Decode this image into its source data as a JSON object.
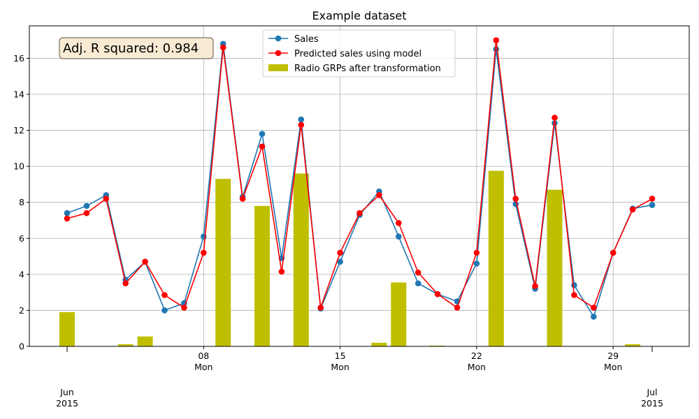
{
  "chart_data": {
    "type": "line",
    "title": "Example dataset",
    "xlabel": "",
    "ylabel": "",
    "ylim": [
      0,
      17.8
    ],
    "yticks": [
      0,
      2,
      4,
      6,
      8,
      10,
      12,
      14,
      16
    ],
    "grid": true,
    "legend_position": "top-center",
    "x": [
      "2015-06-01",
      "2015-06-02",
      "2015-06-03",
      "2015-06-04",
      "2015-06-05",
      "2015-06-06",
      "2015-06-07",
      "2015-06-08",
      "2015-06-09",
      "2015-06-10",
      "2015-06-11",
      "2015-06-12",
      "2015-06-13",
      "2015-06-14",
      "2015-06-15",
      "2015-06-16",
      "2015-06-17",
      "2015-06-18",
      "2015-06-19",
      "2015-06-20",
      "2015-06-21",
      "2015-06-22",
      "2015-06-23",
      "2015-06-24",
      "2015-06-25",
      "2015-06-26",
      "2015-06-27",
      "2015-06-28",
      "2015-06-29",
      "2015-06-30",
      "2015-07-01"
    ],
    "xticks_major": [
      {
        "date": "2015-06-01",
        "line1": "Jun",
        "line2": "2015"
      },
      {
        "date": "2015-07-01",
        "line1": "Jul",
        "line2": "2015"
      }
    ],
    "xticks_minor": [
      {
        "date": "2015-06-08",
        "line1": "08",
        "line2": "Mon"
      },
      {
        "date": "2015-06-15",
        "line1": "15",
        "line2": "Mon"
      },
      {
        "date": "2015-06-22",
        "line1": "22",
        "line2": "Mon"
      },
      {
        "date": "2015-06-29",
        "line1": "29",
        "line2": "Mon"
      }
    ],
    "series": [
      {
        "name": "Sales",
        "kind": "line",
        "color": "#1f77b4",
        "values": [
          7.4,
          7.8,
          8.4,
          3.7,
          4.7,
          2.0,
          2.4,
          6.1,
          16.8,
          8.3,
          11.8,
          4.9,
          12.6,
          2.1,
          4.7,
          7.3,
          8.6,
          6.1,
          3.5,
          2.9,
          2.5,
          4.6,
          16.5,
          7.9,
          3.2,
          12.4,
          3.4,
          1.65,
          5.2,
          7.65,
          7.85
        ]
      },
      {
        "name": "Predicted sales using model",
        "kind": "line",
        "color": "#ff0000",
        "values": [
          7.1,
          7.4,
          8.2,
          3.5,
          4.7,
          2.85,
          2.15,
          5.2,
          16.6,
          8.2,
          11.1,
          4.15,
          12.3,
          2.15,
          5.2,
          7.4,
          8.4,
          6.85,
          4.1,
          2.9,
          2.15,
          5.2,
          17.0,
          8.2,
          3.35,
          12.7,
          2.85,
          2.15,
          5.2,
          7.6,
          8.2
        ]
      },
      {
        "name": "Radio GRPs after transformation",
        "kind": "bar",
        "color": "#bfbf00",
        "values": [
          1.9,
          0,
          0,
          0.12,
          0.55,
          0,
          0,
          0,
          9.3,
          0,
          7.8,
          0,
          9.6,
          0,
          0,
          0,
          0.2,
          3.55,
          0,
          0.04,
          0,
          0,
          9.75,
          0,
          0,
          8.7,
          0,
          0,
          0,
          0.12,
          0
        ]
      }
    ],
    "annotations": [
      {
        "text": "Adj. R squared: 0.984",
        "position": "top-left"
      }
    ]
  }
}
